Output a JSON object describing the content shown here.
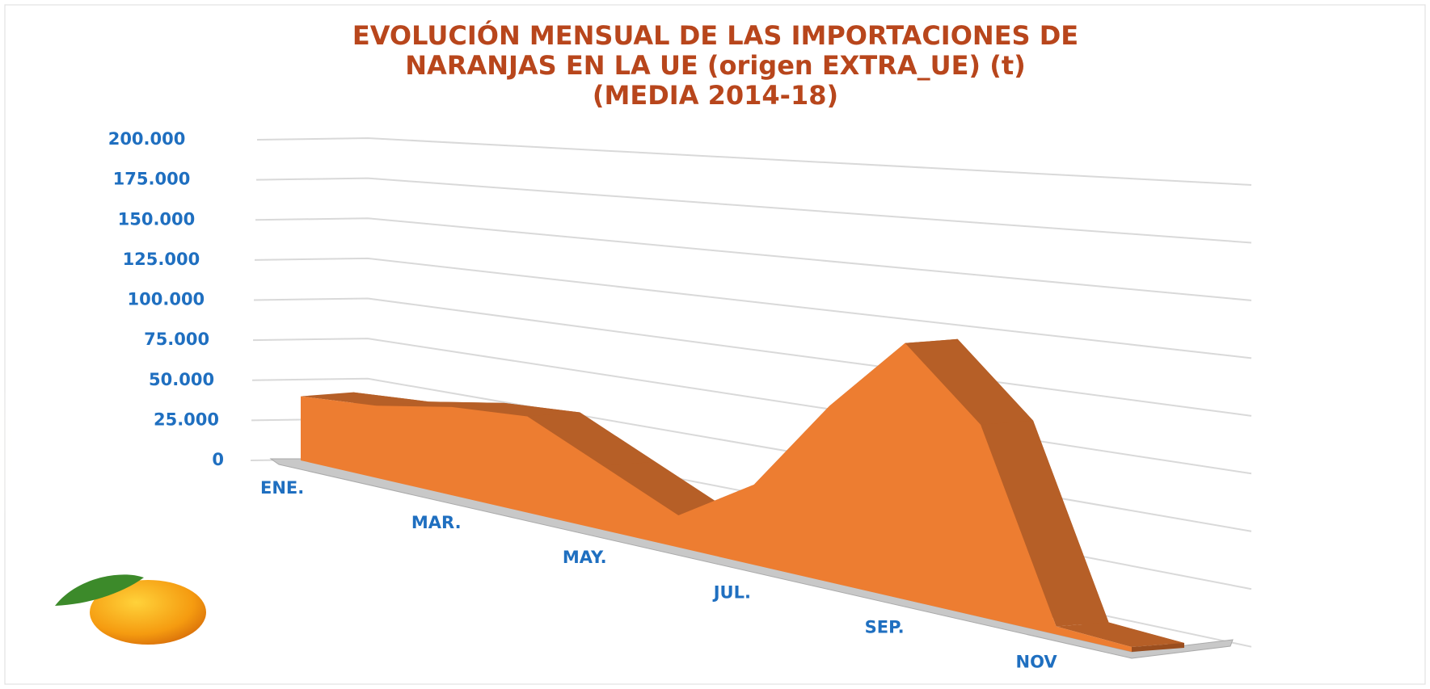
{
  "chart_data": {
    "type": "area3d",
    "title": [
      "EVOLUCIÓN MENSUAL DE LAS IMPORTACIONES DE",
      "NARANJAS EN LA UE (origen EXTRA_UE) (t)",
      "(MEDIA 2014-18)"
    ],
    "categories": [
      "ENE.",
      null,
      "MAR.",
      null,
      "MAY.",
      null,
      "JUL.",
      null,
      "SEP.",
      null,
      "NOV",
      null
    ],
    "values": [
      40000,
      45000,
      55000,
      60000,
      40000,
      20000,
      50000,
      110000,
      160000,
      120000,
      5000,
      3000
    ],
    "color": "#ed7d31",
    "side_color": "#b65f27",
    "ylim": [
      0,
      200000
    ],
    "yticks": [
      0,
      {
        "value": 25000,
        "label": "25.000"
      },
      {
        "value": 50000,
        "label": "50.000"
      },
      {
        "value": 75000,
        "label": "75.000"
      },
      {
        "value": 100000,
        "label": "100.000"
      },
      {
        "value": 125000,
        "label": "125.000"
      },
      {
        "value": 150000,
        "label": "150.000"
      },
      {
        "value": 175000,
        "label": "175.000"
      },
      {
        "value": 200000,
        "label": "200.000"
      }
    ],
    "grid": true
  }
}
